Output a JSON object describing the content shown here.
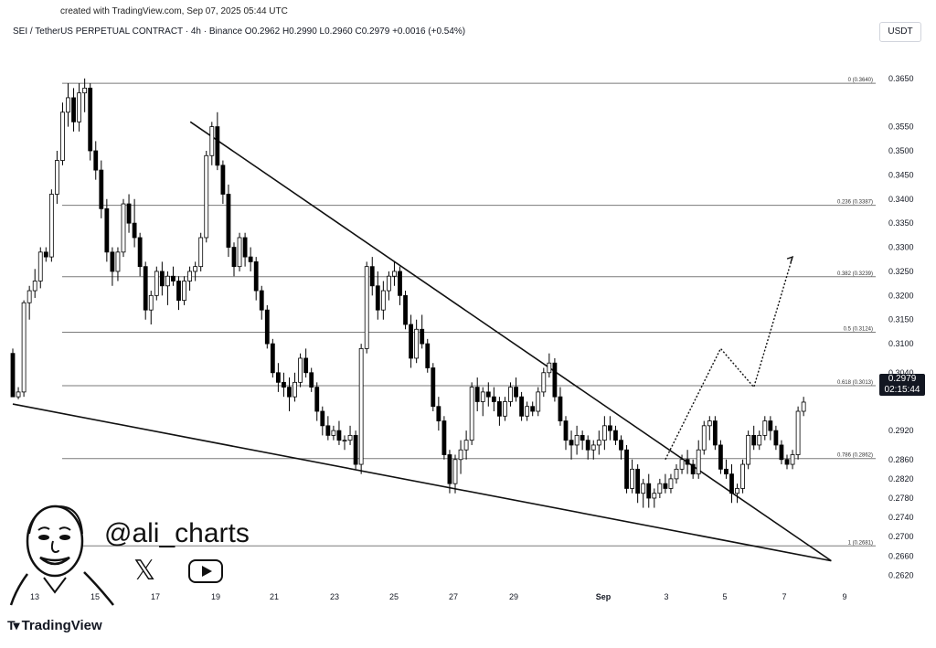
{
  "header": {
    "created_note": "created with TradingView.com, Sep 07, 2025 05:44 UTC",
    "symbol_info": "SEI / TetherUS PERPETUAL CONTRACT · 4h · Binance",
    "open": "O0.2962",
    "high": "H0.2990",
    "low": "L0.2960",
    "close": "C0.2979",
    "change": "+0.0016 (+0.54%)",
    "currency": "USDT"
  },
  "overlay": {
    "handle": "@ali_charts",
    "x_icon": "x-logo",
    "youtube_icon": "youtube-logo",
    "avatar_icon": "cartoon-face"
  },
  "footer": {
    "brand": "TradingView"
  },
  "colors": {
    "candle": "#000000",
    "background": "#ffffff",
    "gridline": "#7a7a7a"
  },
  "chart_data": {
    "type": "candlestick",
    "timeframe": "4h",
    "ylim": [
      0.26,
      0.368
    ],
    "y_ticks": [
      "0.3650",
      "0.3550",
      "0.3500",
      "0.3450",
      "0.3400",
      "0.3350",
      "0.3300",
      "0.3250",
      "0.3200",
      "0.3150",
      "0.3100",
      "0.3040",
      "0.2920",
      "0.2860",
      "0.2820",
      "0.2780",
      "0.2740",
      "0.2700",
      "0.2660",
      "0.2620"
    ],
    "x_ticks": [
      "13",
      "15",
      "17",
      "19",
      "21",
      "23",
      "25",
      "27",
      "29",
      "Sep",
      "3",
      "5",
      "7",
      "9"
    ],
    "last_price": "0.2979",
    "countdown": "02:15:44",
    "fib_levels": [
      {
        "label": "0 (0.3640)",
        "value": 0.364
      },
      {
        "label": "0.236 (0.3387)",
        "value": 0.3387
      },
      {
        "label": "0.382 (0.3239)",
        "value": 0.3239
      },
      {
        "label": "0.5 (0.3124)",
        "value": 0.3124
      },
      {
        "label": "0.618 (0.3013)",
        "value": 0.3013
      },
      {
        "label": "0.786 (0.2862)",
        "value": 0.2862
      },
      {
        "label": "1 (0.2681)",
        "value": 0.2681
      }
    ],
    "candles": [
      [
        0.308,
        0.309,
        0.2995,
        0.299
      ],
      [
        0.299,
        0.301,
        0.2985,
        0.3
      ],
      [
        0.3,
        0.319,
        0.299,
        0.3185
      ],
      [
        0.3185,
        0.322,
        0.315,
        0.321
      ],
      [
        0.321,
        0.3255,
        0.3195,
        0.323
      ],
      [
        0.323,
        0.33,
        0.3215,
        0.329
      ],
      [
        0.329,
        0.33,
        0.327,
        0.328
      ],
      [
        0.328,
        0.342,
        0.327,
        0.341
      ],
      [
        0.341,
        0.35,
        0.339,
        0.348
      ],
      [
        0.348,
        0.36,
        0.347,
        0.358
      ],
      [
        0.358,
        0.364,
        0.355,
        0.361
      ],
      [
        0.361,
        0.363,
        0.354,
        0.356
      ],
      [
        0.356,
        0.364,
        0.354,
        0.362
      ],
      [
        0.362,
        0.365,
        0.358,
        0.363
      ],
      [
        0.363,
        0.364,
        0.348,
        0.35
      ],
      [
        0.35,
        0.352,
        0.344,
        0.346
      ],
      [
        0.346,
        0.348,
        0.336,
        0.338
      ],
      [
        0.338,
        0.34,
        0.327,
        0.329
      ],
      [
        0.329,
        0.33,
        0.322,
        0.325
      ],
      [
        0.325,
        0.33,
        0.323,
        0.329
      ],
      [
        0.329,
        0.34,
        0.328,
        0.339
      ],
      [
        0.339,
        0.341,
        0.333,
        0.335
      ],
      [
        0.335,
        0.34,
        0.33,
        0.332
      ],
      [
        0.332,
        0.333,
        0.324,
        0.326
      ],
      [
        0.326,
        0.327,
        0.315,
        0.317
      ],
      [
        0.317,
        0.321,
        0.314,
        0.32
      ],
      [
        0.32,
        0.326,
        0.319,
        0.325
      ],
      [
        0.325,
        0.327,
        0.32,
        0.322
      ],
      [
        0.322,
        0.325,
        0.318,
        0.324
      ],
      [
        0.324,
        0.326,
        0.322,
        0.323
      ],
      [
        0.323,
        0.324,
        0.317,
        0.319
      ],
      [
        0.319,
        0.324,
        0.318,
        0.323
      ],
      [
        0.323,
        0.326,
        0.321,
        0.325
      ],
      [
        0.325,
        0.327,
        0.323,
        0.326
      ],
      [
        0.326,
        0.333,
        0.325,
        0.332
      ],
      [
        0.332,
        0.35,
        0.331,
        0.349
      ],
      [
        0.349,
        0.356,
        0.347,
        0.355
      ],
      [
        0.355,
        0.358,
        0.346,
        0.347
      ],
      [
        0.347,
        0.348,
        0.339,
        0.341
      ],
      [
        0.341,
        0.343,
        0.328,
        0.33
      ],
      [
        0.33,
        0.331,
        0.324,
        0.326
      ],
      [
        0.326,
        0.333,
        0.325,
        0.332
      ],
      [
        0.332,
        0.333,
        0.326,
        0.328
      ],
      [
        0.328,
        0.33,
        0.325,
        0.327
      ],
      [
        0.327,
        0.328,
        0.319,
        0.321
      ],
      [
        0.321,
        0.322,
        0.315,
        0.317
      ],
      [
        0.317,
        0.318,
        0.309,
        0.31
      ],
      [
        0.31,
        0.311,
        0.303,
        0.304
      ],
      [
        0.304,
        0.306,
        0.3,
        0.302
      ],
      [
        0.302,
        0.304,
        0.299,
        0.301
      ],
      [
        0.301,
        0.303,
        0.296,
        0.299
      ],
      [
        0.299,
        0.304,
        0.298,
        0.302
      ],
      [
        0.302,
        0.308,
        0.301,
        0.307
      ],
      [
        0.307,
        0.309,
        0.303,
        0.304
      ],
      [
        0.304,
        0.305,
        0.3,
        0.301
      ],
      [
        0.301,
        0.302,
        0.294,
        0.296
      ],
      [
        0.296,
        0.297,
        0.291,
        0.293
      ],
      [
        0.293,
        0.295,
        0.29,
        0.291
      ],
      [
        0.291,
        0.293,
        0.29,
        0.292
      ],
      [
        0.292,
        0.294,
        0.289,
        0.29
      ],
      [
        0.29,
        0.291,
        0.288,
        0.29
      ],
      [
        0.29,
        0.293,
        0.289,
        0.291
      ],
      [
        0.291,
        0.292,
        0.284,
        0.285
      ],
      [
        0.285,
        0.31,
        0.283,
        0.309
      ],
      [
        0.309,
        0.327,
        0.308,
        0.326
      ],
      [
        0.326,
        0.328,
        0.32,
        0.322
      ],
      [
        0.322,
        0.325,
        0.315,
        0.317
      ],
      [
        0.317,
        0.323,
        0.315,
        0.321
      ],
      [
        0.321,
        0.325,
        0.319,
        0.324
      ],
      [
        0.324,
        0.327,
        0.322,
        0.325
      ],
      [
        0.325,
        0.326,
        0.318,
        0.32
      ],
      [
        0.32,
        0.321,
        0.313,
        0.314
      ],
      [
        0.314,
        0.316,
        0.305,
        0.307
      ],
      [
        0.307,
        0.315,
        0.306,
        0.313
      ],
      [
        0.313,
        0.316,
        0.309,
        0.31
      ],
      [
        0.31,
        0.311,
        0.304,
        0.305
      ],
      [
        0.305,
        0.306,
        0.296,
        0.297
      ],
      [
        0.297,
        0.299,
        0.292,
        0.294
      ],
      [
        0.294,
        0.295,
        0.286,
        0.287
      ],
      [
        0.287,
        0.288,
        0.279,
        0.281
      ],
      [
        0.281,
        0.287,
        0.279,
        0.286
      ],
      [
        0.286,
        0.29,
        0.283,
        0.288
      ],
      [
        0.288,
        0.292,
        0.286,
        0.29
      ],
      [
        0.29,
        0.302,
        0.289,
        0.301
      ],
      [
        0.301,
        0.303,
        0.296,
        0.298
      ],
      [
        0.298,
        0.301,
        0.295,
        0.3
      ],
      [
        0.3,
        0.302,
        0.297,
        0.299
      ],
      [
        0.299,
        0.301,
        0.296,
        0.298
      ],
      [
        0.298,
        0.299,
        0.293,
        0.295
      ],
      [
        0.295,
        0.299,
        0.294,
        0.298
      ],
      [
        0.298,
        0.302,
        0.297,
        0.301
      ],
      [
        0.301,
        0.303,
        0.298,
        0.299
      ],
      [
        0.299,
        0.3,
        0.294,
        0.295
      ],
      [
        0.295,
        0.298,
        0.294,
        0.297
      ],
      [
        0.297,
        0.298,
        0.295,
        0.296
      ],
      [
        0.296,
        0.301,
        0.295,
        0.3
      ],
      [
        0.3,
        0.305,
        0.299,
        0.304
      ],
      [
        0.304,
        0.308,
        0.303,
        0.306
      ],
      [
        0.306,
        0.307,
        0.298,
        0.299
      ],
      [
        0.299,
        0.301,
        0.293,
        0.294
      ],
      [
        0.294,
        0.295,
        0.288,
        0.29
      ],
      [
        0.29,
        0.292,
        0.286,
        0.289
      ],
      [
        0.289,
        0.293,
        0.287,
        0.291
      ],
      [
        0.291,
        0.292,
        0.288,
        0.29
      ],
      [
        0.29,
        0.291,
        0.286,
        0.288
      ],
      [
        0.288,
        0.29,
        0.286,
        0.289
      ],
      [
        0.289,
        0.292,
        0.287,
        0.29
      ],
      [
        0.29,
        0.295,
        0.288,
        0.293
      ],
      [
        0.293,
        0.295,
        0.29,
        0.292
      ],
      [
        0.292,
        0.293,
        0.289,
        0.29
      ],
      [
        0.29,
        0.291,
        0.286,
        0.288
      ],
      [
        0.288,
        0.289,
        0.279,
        0.28
      ],
      [
        0.28,
        0.286,
        0.279,
        0.284
      ],
      [
        0.284,
        0.285,
        0.277,
        0.279
      ],
      [
        0.279,
        0.282,
        0.276,
        0.281
      ],
      [
        0.281,
        0.283,
        0.276,
        0.278
      ],
      [
        0.278,
        0.28,
        0.276,
        0.279
      ],
      [
        0.279,
        0.282,
        0.278,
        0.281
      ],
      [
        0.281,
        0.283,
        0.279,
        0.28
      ],
      [
        0.28,
        0.283,
        0.279,
        0.282
      ],
      [
        0.282,
        0.285,
        0.281,
        0.284
      ],
      [
        0.284,
        0.287,
        0.283,
        0.286
      ],
      [
        0.286,
        0.288,
        0.283,
        0.285
      ],
      [
        0.285,
        0.286,
        0.282,
        0.283
      ],
      [
        0.283,
        0.29,
        0.282,
        0.288
      ],
      [
        0.288,
        0.294,
        0.287,
        0.293
      ],
      [
        0.293,
        0.295,
        0.29,
        0.294
      ],
      [
        0.294,
        0.295,
        0.288,
        0.289
      ],
      [
        0.289,
        0.29,
        0.283,
        0.284
      ],
      [
        0.284,
        0.286,
        0.282,
        0.283
      ],
      [
        0.283,
        0.285,
        0.277,
        0.279
      ],
      [
        0.279,
        0.281,
        0.277,
        0.28
      ],
      [
        0.28,
        0.286,
        0.279,
        0.285
      ],
      [
        0.285,
        0.292,
        0.284,
        0.291
      ],
      [
        0.291,
        0.293,
        0.288,
        0.289
      ],
      [
        0.289,
        0.292,
        0.288,
        0.291
      ],
      [
        0.291,
        0.295,
        0.29,
        0.294
      ],
      [
        0.294,
        0.295,
        0.29,
        0.292
      ],
      [
        0.292,
        0.293,
        0.288,
        0.289
      ],
      [
        0.289,
        0.29,
        0.285,
        0.286
      ],
      [
        0.286,
        0.287,
        0.284,
        0.285
      ],
      [
        0.285,
        0.288,
        0.284,
        0.287
      ],
      [
        0.287,
        0.297,
        0.286,
        0.296
      ],
      [
        0.296,
        0.299,
        0.295,
        0.2979
      ]
    ],
    "trendlines": [
      {
        "name": "upper",
        "from": [
          4,
          0.356
        ],
        "to": [
          148,
          0.265
        ]
      },
      {
        "name": "lower",
        "from": [
          0,
          0.2975
        ],
        "to": [
          148,
          0.265
        ]
      }
    ],
    "projection": [
      [
        118,
        0.286
      ],
      [
        128,
        0.309
      ],
      [
        134,
        0.301
      ],
      [
        141,
        0.328
      ]
    ]
  }
}
